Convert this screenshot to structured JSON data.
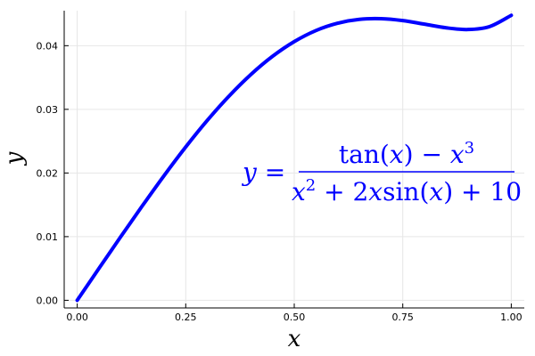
{
  "chart_data": {
    "type": "line",
    "xlabel": "x",
    "ylabel": "y",
    "xlim": [
      -0.03,
      1.03
    ],
    "ylim": [
      -0.0012,
      0.0455
    ],
    "xticks": [
      0.0,
      0.25,
      0.5,
      0.75,
      1.0
    ],
    "xtick_labels": [
      "0.00",
      "0.25",
      "0.50",
      "0.75",
      "1.00"
    ],
    "yticks": [
      0.0,
      0.01,
      0.02,
      0.03,
      0.04
    ],
    "ytick_labels": [
      "0.00",
      "0.01",
      "0.02",
      "0.03",
      "0.04"
    ],
    "grid": true,
    "series": [
      {
        "color": "#0000ff",
        "x": [
          0.0,
          0.05,
          0.1,
          0.15,
          0.2,
          0.25,
          0.3,
          0.35,
          0.4,
          0.45,
          0.5,
          0.55,
          0.6,
          0.65,
          0.7,
          0.75,
          0.8,
          0.85,
          0.9,
          0.95,
          1.0
        ],
        "y": [
          0.0,
          0.005,
          0.00996,
          0.01484,
          0.01958,
          0.02409,
          0.02829,
          0.0321,
          0.03547,
          0.03833,
          0.04064,
          0.04238,
          0.04353,
          0.04414,
          0.04424,
          0.04394,
          0.04338,
          0.04281,
          0.04254,
          0.043,
          0.04477
        ]
      }
    ],
    "annotation": {
      "lhs": "y =",
      "numerator": {
        "tan": "tan",
        "open": "(",
        "var": "x",
        "close": ")",
        "minus": " − ",
        "xvar": "x",
        "exp": "3"
      },
      "denominator": {
        "x": "x",
        "exp": "2",
        "plus1": " + 2",
        "x2": "x",
        "sin": "sin",
        "open": "(",
        "var": "x",
        "close": ")",
        "plus2": " + 10"
      }
    }
  }
}
